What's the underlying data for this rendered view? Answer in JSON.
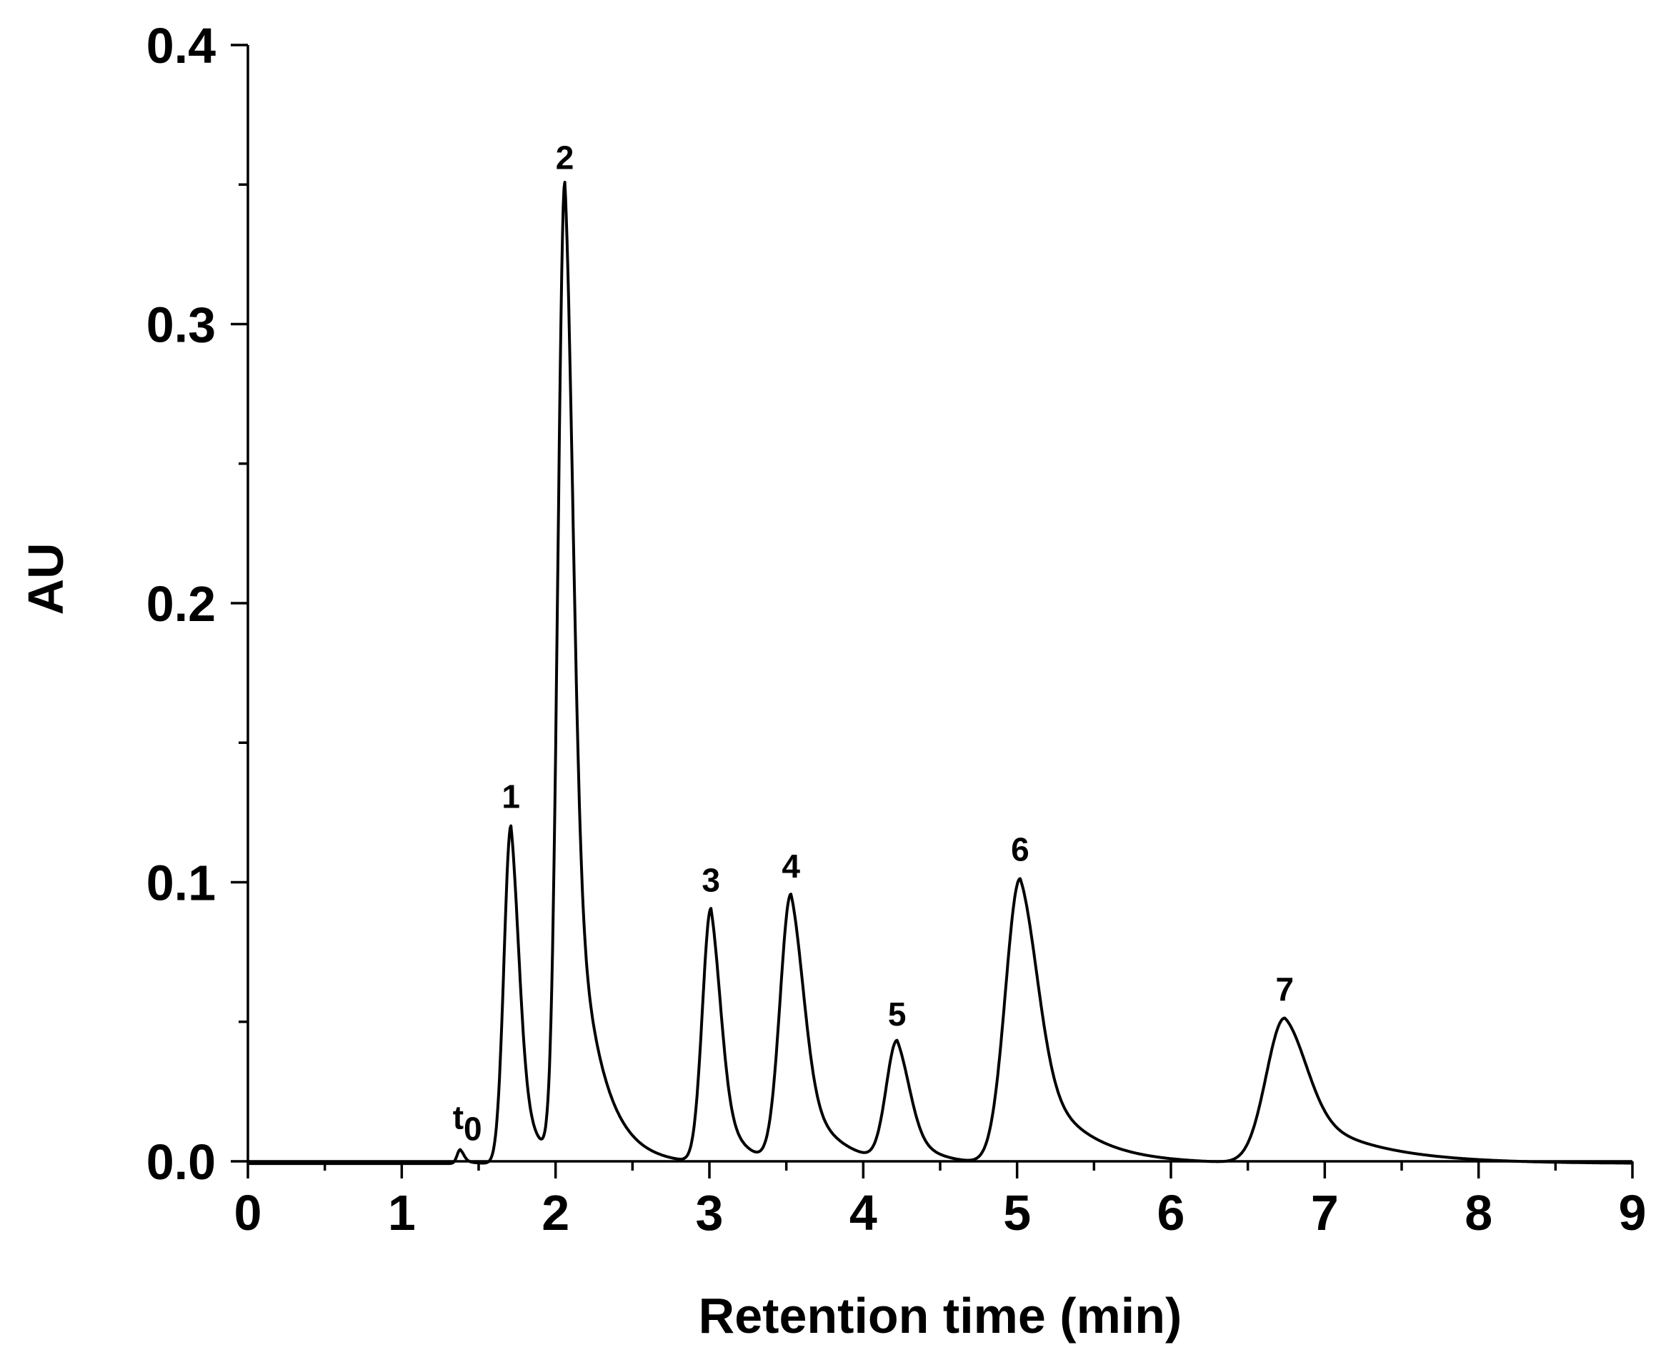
{
  "chart_data": {
    "type": "line",
    "title": "",
    "xlabel": "Retention time (min)",
    "ylabel": "AU",
    "xlim": [
      0,
      9
    ],
    "ylim": [
      0,
      0.4
    ],
    "x_major_ticks": [
      0,
      1,
      2,
      3,
      4,
      5,
      6,
      7,
      8,
      9
    ],
    "x_tick_labels": [
      "0",
      "1",
      "2",
      "3",
      "4",
      "5",
      "6",
      "7",
      "8",
      "9"
    ],
    "x_minor_step": 0.5,
    "y_major_ticks": [
      0.0,
      0.1,
      0.2,
      0.3,
      0.4
    ],
    "y_tick_labels": [
      "0.0",
      "0.1",
      "0.2",
      "0.3",
      "0.4"
    ],
    "y_minor_step": 0.05,
    "grid": false,
    "series": [
      {
        "name": "chromatogram",
        "color": "#000000",
        "peaks": [
          {
            "label": "t0",
            "rt": 1.38,
            "height": 0.005,
            "sigma_left": 0.02,
            "sigma_right": 0.05
          },
          {
            "label": "1",
            "rt": 1.71,
            "height": 0.121,
            "sigma_left": 0.045,
            "sigma_right": 0.1
          },
          {
            "label": "2",
            "rt": 2.06,
            "height": 0.35,
            "sigma_left": 0.045,
            "sigma_right": 0.16
          },
          {
            "label": "3",
            "rt": 3.01,
            "height": 0.091,
            "sigma_left": 0.055,
            "sigma_right": 0.12
          },
          {
            "label": "4",
            "rt": 3.53,
            "height": 0.096,
            "sigma_left": 0.07,
            "sigma_right": 0.19
          },
          {
            "label": "5",
            "rt": 4.22,
            "height": 0.043,
            "sigma_left": 0.07,
            "sigma_right": 0.15
          },
          {
            "label": "6",
            "rt": 5.02,
            "height": 0.102,
            "sigma_left": 0.095,
            "sigma_right": 0.3
          },
          {
            "label": "7",
            "rt": 6.74,
            "height": 0.052,
            "sigma_left": 0.12,
            "sigma_right": 0.45
          }
        ]
      }
    ],
    "annotations": [
      {
        "text": "t",
        "subscript": "0",
        "x": 1.38,
        "y": 0.005
      },
      {
        "text": "1",
        "x": 1.71,
        "y": 0.121
      },
      {
        "text": "2",
        "x": 2.06,
        "y": 0.35
      },
      {
        "text": "3",
        "x": 3.01,
        "y": 0.091
      },
      {
        "text": "4",
        "x": 3.53,
        "y": 0.096
      },
      {
        "text": "5",
        "x": 4.22,
        "y": 0.043
      },
      {
        "text": "6",
        "x": 5.02,
        "y": 0.102
      },
      {
        "text": "7",
        "x": 6.74,
        "y": 0.052
      }
    ]
  }
}
